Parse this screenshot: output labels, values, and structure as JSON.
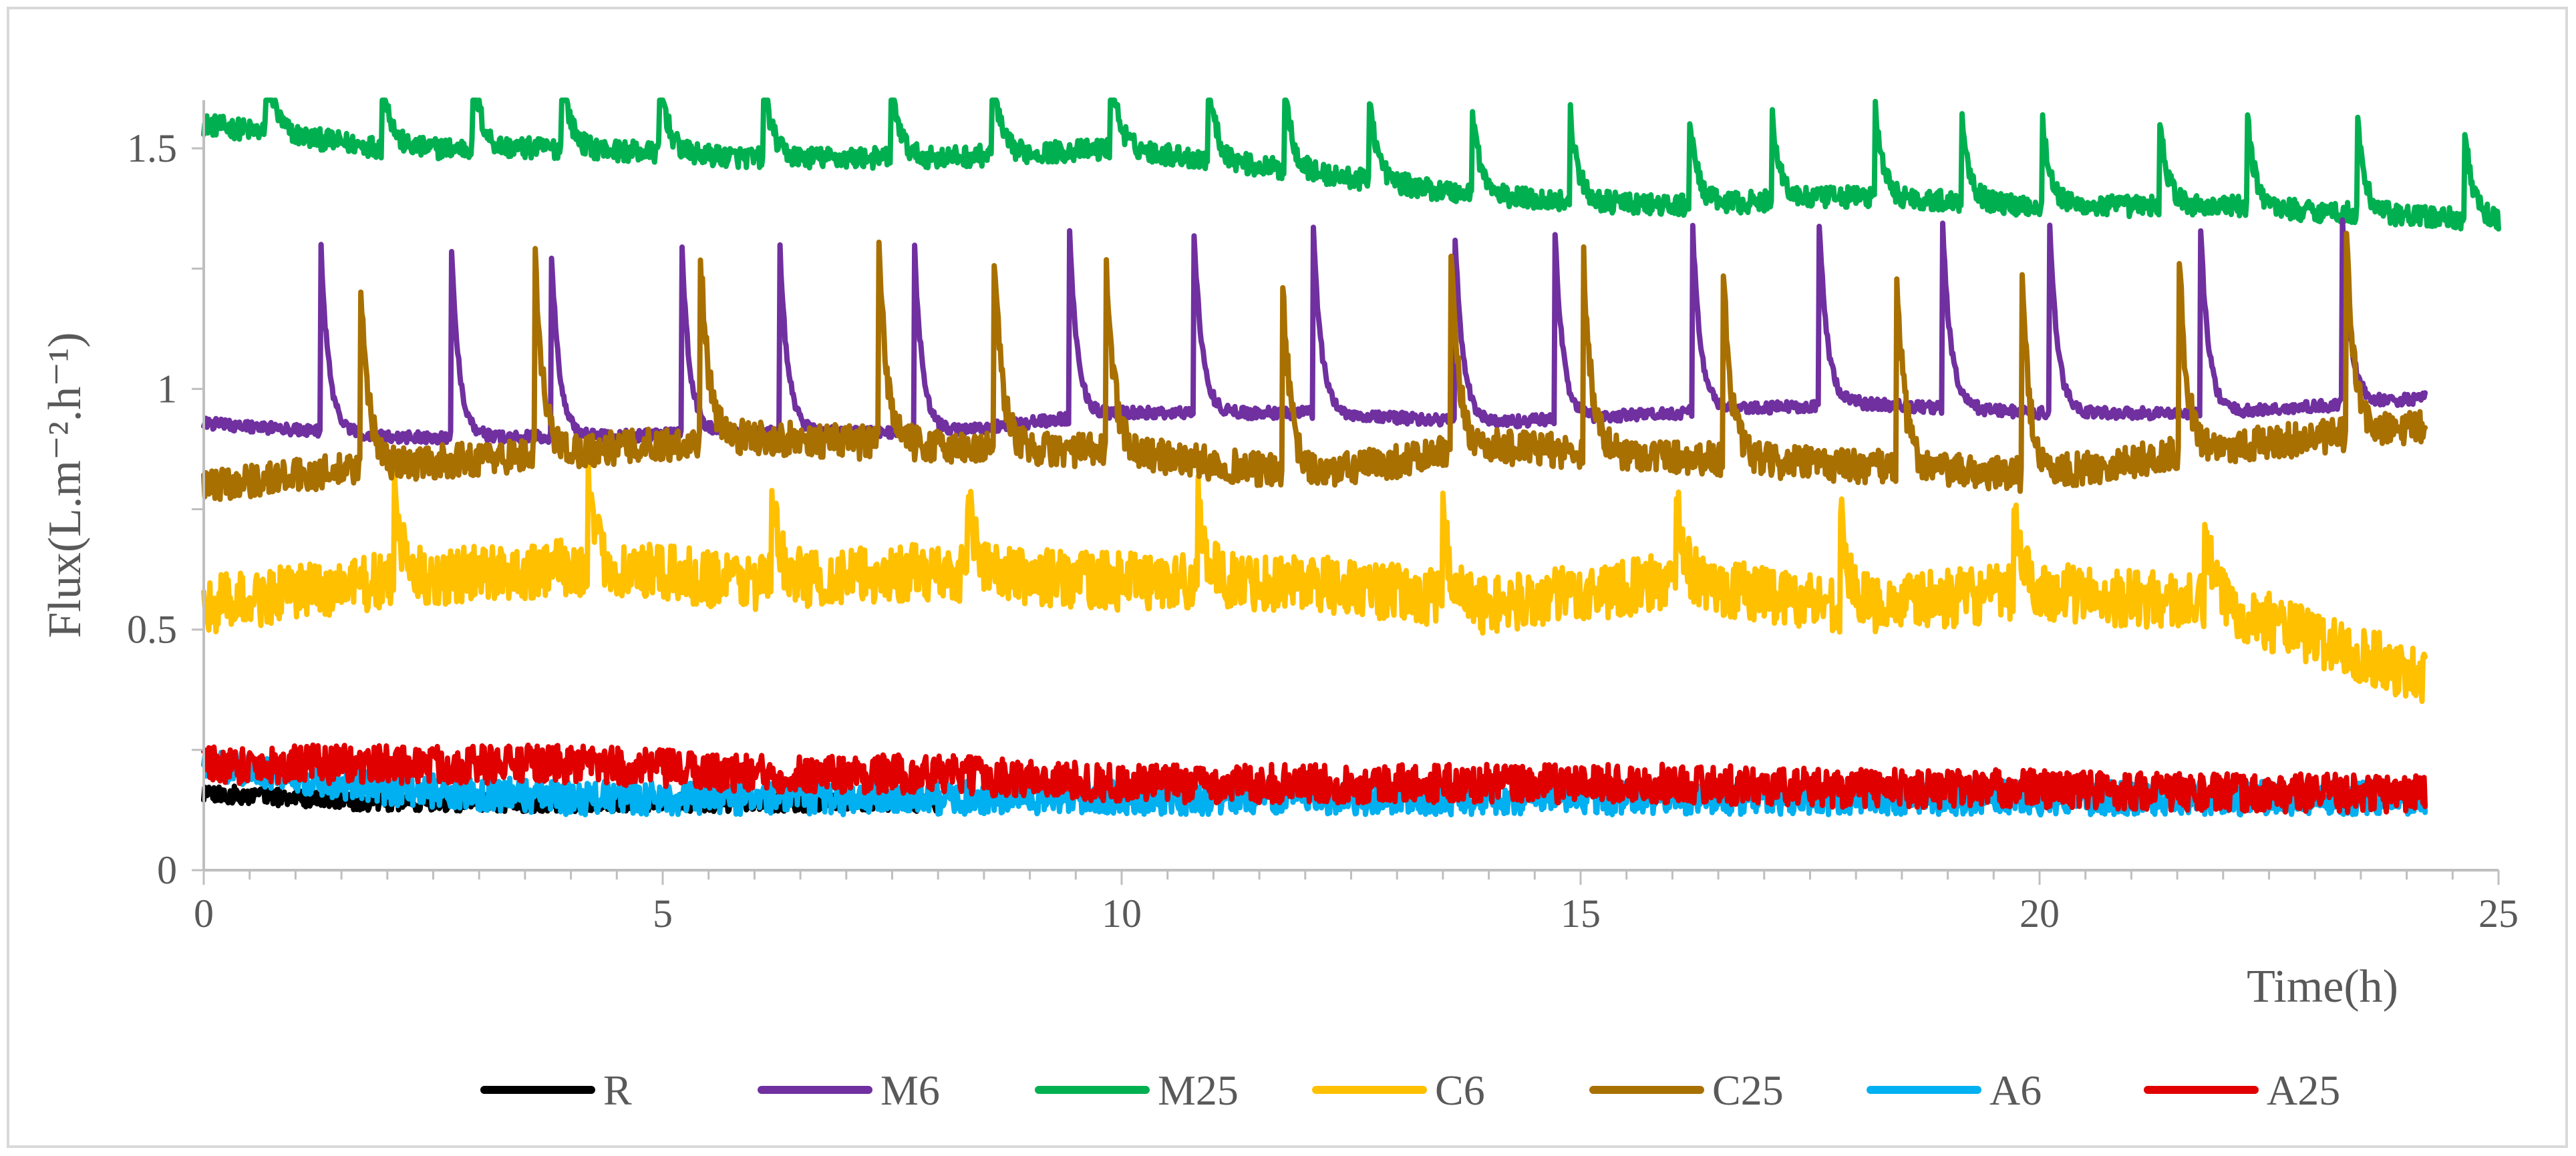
{
  "chart_data": {
    "type": "line",
    "title": "",
    "xlabel": "Time(h)",
    "ylabel": "Flux(L.m⁻².h⁻¹)",
    "xlim": [
      0,
      25
    ],
    "ylim": [
      0,
      1.6
    ],
    "x_ticks": [
      0,
      5,
      10,
      15,
      20,
      25
    ],
    "x_tick_labels": [
      "0",
      "5",
      "10",
      "15",
      "20",
      "25"
    ],
    "y_ticks": [
      0,
      0.5,
      1,
      1.5
    ],
    "y_tick_labels": [
      "0",
      "0.5",
      "1",
      "1.5"
    ],
    "grid": false,
    "legend_position": "bottom",
    "series": [
      {
        "name": "R",
        "color": "#000000",
        "x": [
          0,
          1,
          2,
          3,
          4,
          5,
          6,
          7,
          8
        ],
        "y": [
          0.16,
          0.15,
          0.14,
          0.14,
          0.14,
          0.14,
          0.14,
          0.14,
          0.14
        ]
      },
      {
        "name": "M6",
        "color": "#7030a0",
        "x": [
          0,
          2,
          4,
          6,
          8,
          10,
          12,
          14,
          16,
          18,
          20,
          22,
          24.2
        ],
        "y": [
          0.93,
          0.9,
          0.9,
          0.91,
          0.91,
          0.95,
          0.95,
          0.93,
          0.95,
          0.97,
          0.95,
          0.95,
          0.98
        ]
      },
      {
        "name": "M25",
        "color": "#00b050",
        "x": [
          0,
          2,
          4,
          6,
          8,
          10,
          12,
          14,
          16,
          18,
          20,
          22,
          25
        ],
        "y": [
          1.55,
          1.5,
          1.5,
          1.48,
          1.48,
          1.5,
          1.45,
          1.4,
          1.38,
          1.4,
          1.38,
          1.38,
          1.35
        ]
      },
      {
        "name": "C6",
        "color": "#ffc000",
        "x": [
          0,
          2,
          4,
          6,
          8,
          10,
          12,
          14,
          16,
          18,
          20,
          22,
          24.2
        ],
        "y": [
          0.55,
          0.6,
          0.63,
          0.6,
          0.62,
          0.6,
          0.6,
          0.55,
          0.6,
          0.55,
          0.58,
          0.55,
          0.4
        ]
      },
      {
        "name": "C25",
        "color": "#a87000",
        "x": [
          0,
          2,
          4,
          6,
          8,
          10,
          12,
          14,
          16,
          18,
          20,
          22,
          24.2
        ],
        "y": [
          0.8,
          0.84,
          0.87,
          0.9,
          0.88,
          0.87,
          0.82,
          0.88,
          0.86,
          0.84,
          0.82,
          0.88,
          0.92
        ]
      },
      {
        "name": "A6",
        "color": "#00b0f0",
        "x": [
          0,
          2,
          4,
          6,
          8,
          10,
          12,
          14,
          16,
          18,
          20,
          22,
          24.2
        ],
        "y": [
          0.22,
          0.17,
          0.15,
          0.15,
          0.15,
          0.15,
          0.15,
          0.15,
          0.15,
          0.15,
          0.15,
          0.15,
          0.15
        ]
      },
      {
        "name": "A25",
        "color": "#e00000",
        "x": [
          0,
          2,
          4,
          6,
          8,
          10,
          12,
          14,
          16,
          18,
          20,
          22,
          24.2
        ],
        "y": [
          0.22,
          0.22,
          0.22,
          0.2,
          0.2,
          0.18,
          0.18,
          0.18,
          0.18,
          0.17,
          0.17,
          0.16,
          0.16
        ]
      }
    ]
  }
}
